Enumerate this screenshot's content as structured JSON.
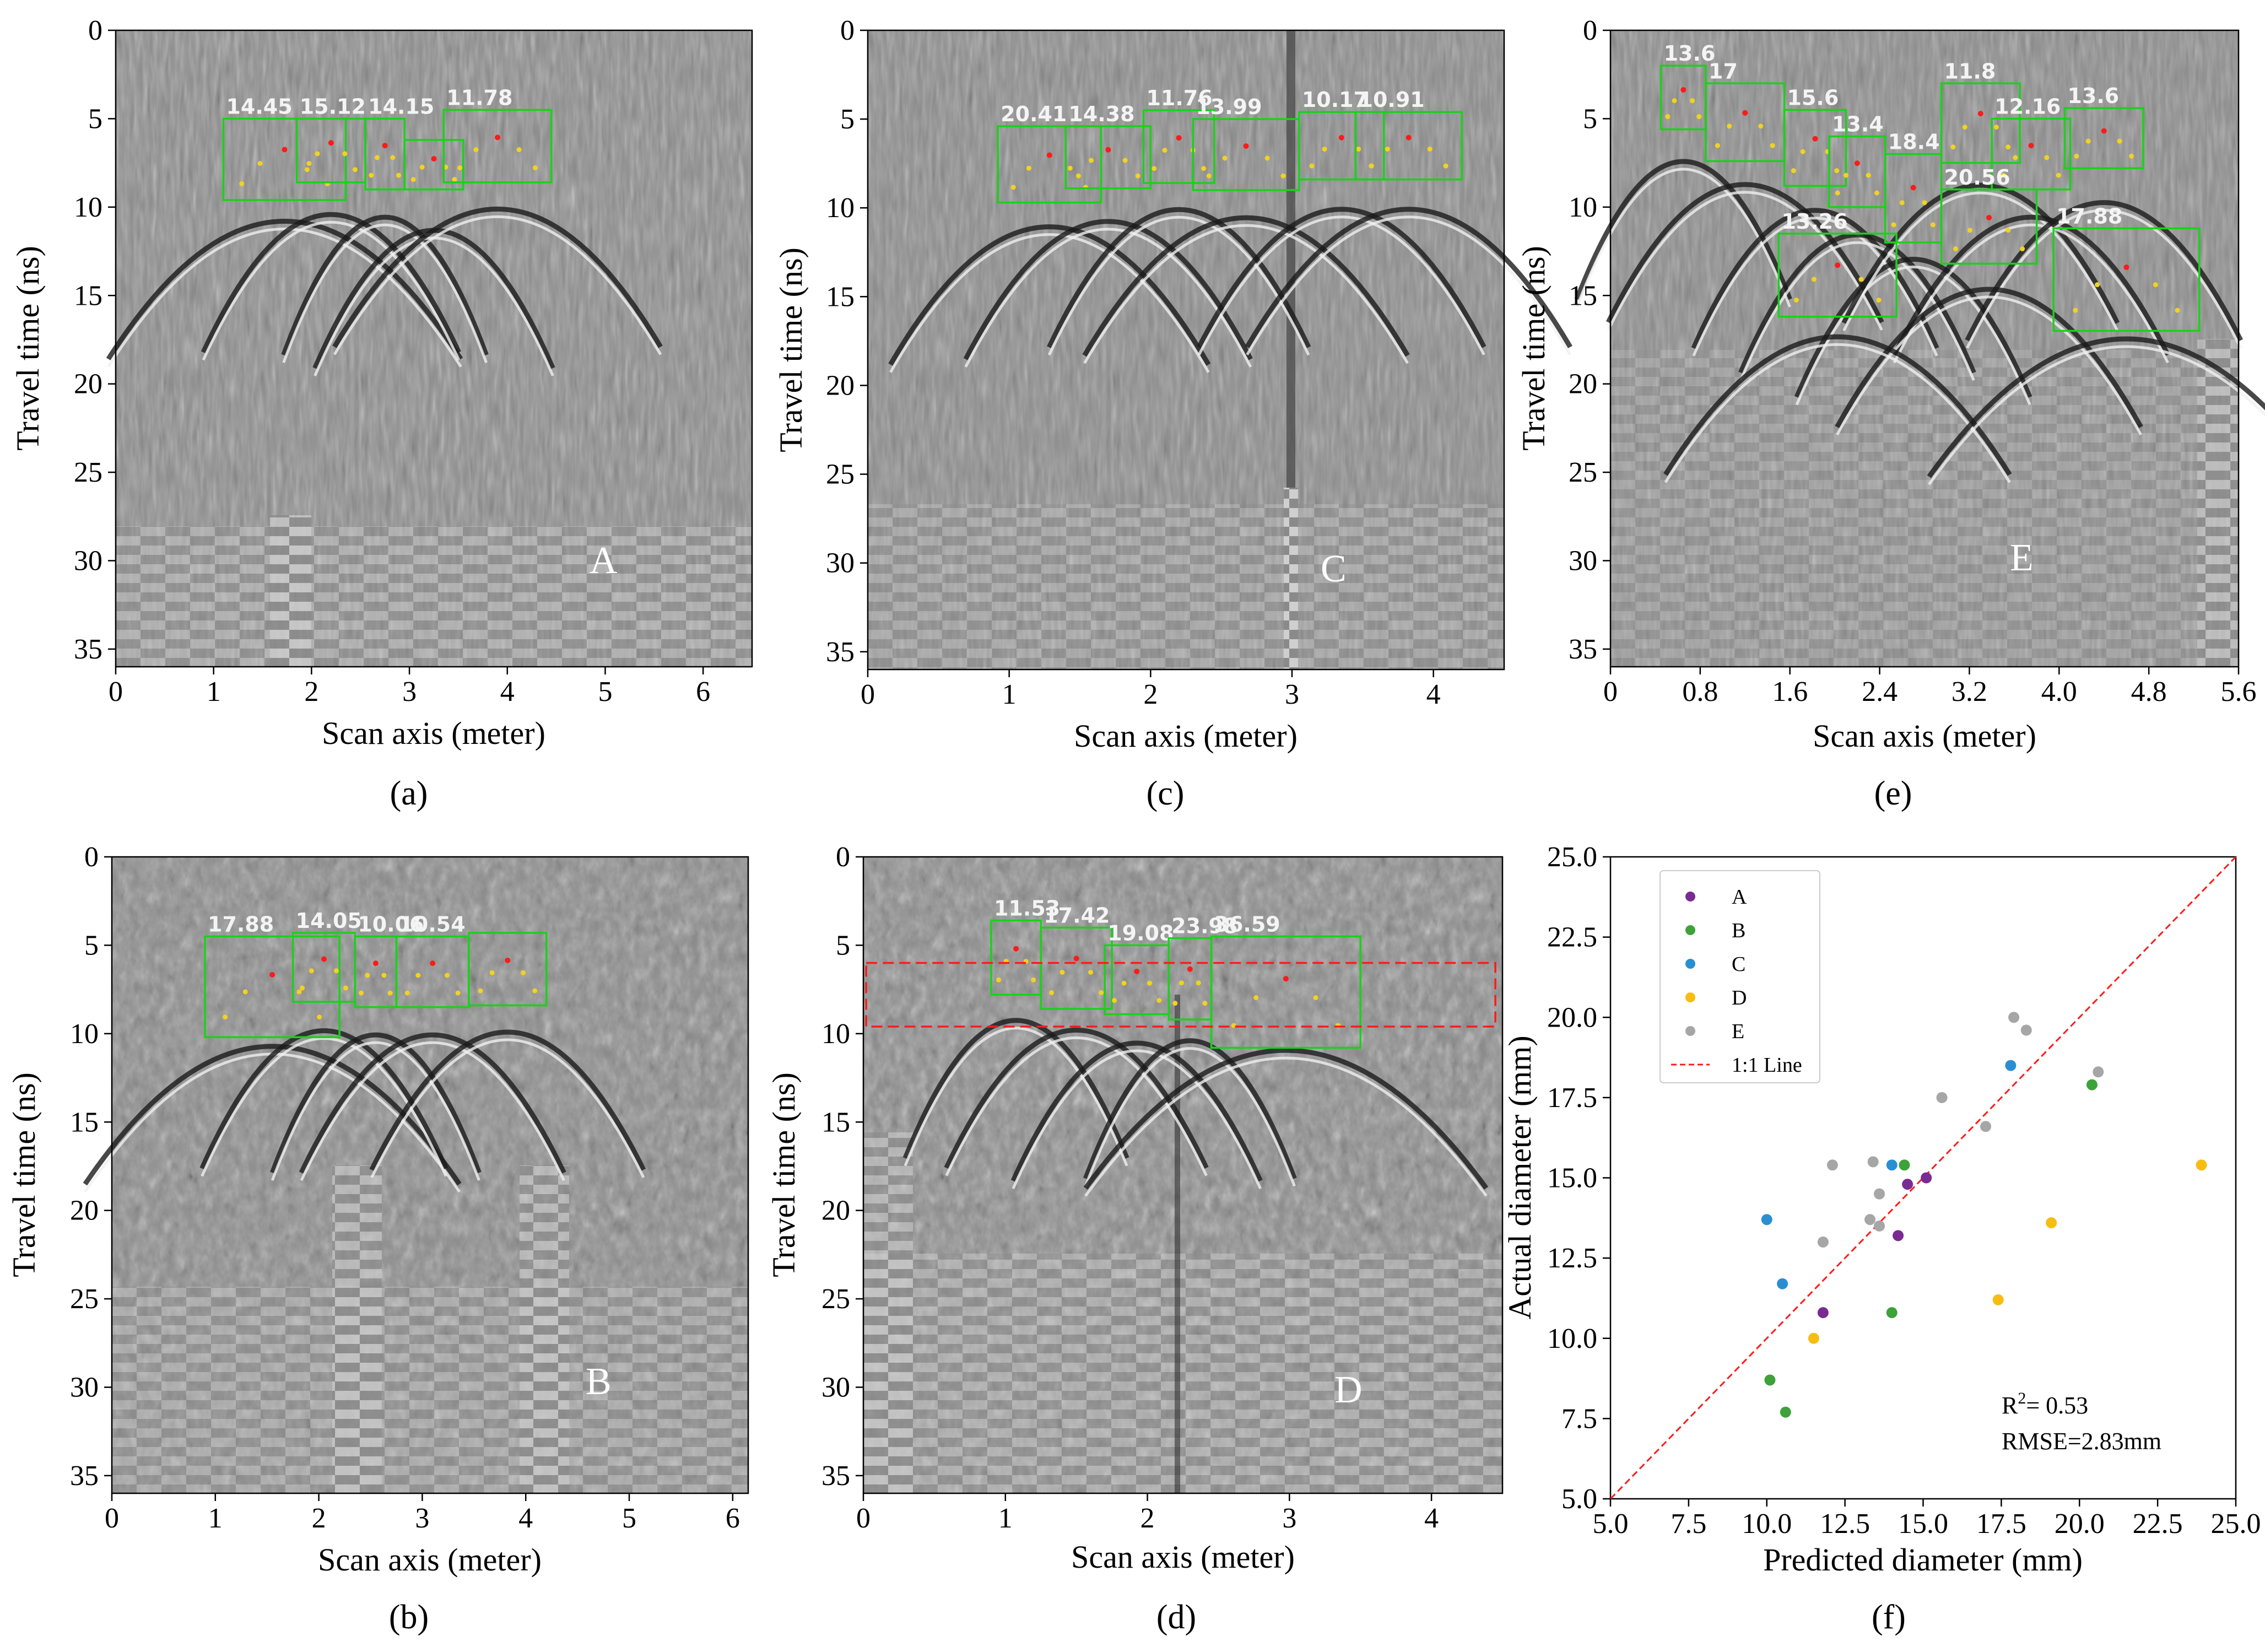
{
  "colors": {
    "box": "#19d219",
    "apex": "#ff1a1a",
    "edge": "#f2d21e",
    "dash": "#ff1a1a",
    "A": "#7a2b91",
    "B": "#3da23a",
    "C": "#2a8fd1",
    "D": "#f7bd12",
    "E": "#a6a6a6"
  },
  "chart_data": [
    {
      "id": "a",
      "type": "image-radargram",
      "caption": "(a)",
      "panel_label": "A",
      "xlabel": "Scan axis (meter)",
      "ylabel": "Travel time (ns)",
      "xlim": [
        0,
        6.5
      ],
      "ylim": [
        36,
        0
      ],
      "xticks": [
        0,
        1,
        2,
        3,
        4,
        5,
        6
      ],
      "xticklabels": [
        "0",
        "1",
        "2",
        "3",
        "4",
        "5",
        "6"
      ],
      "yticks": [
        0,
        5,
        10,
        15,
        20,
        25,
        30,
        35
      ],
      "yticklabels": [
        "0",
        "5",
        "10",
        "15",
        "20",
        "25",
        "30",
        "35"
      ],
      "detections": [
        {
          "label": "14.45",
          "x0": 1.1,
          "x1": 2.35,
          "t0": 5.0,
          "t1": 9.6
        },
        {
          "label": "15.12",
          "x0": 1.85,
          "x1": 2.55,
          "t0": 5.0,
          "t1": 8.6
        },
        {
          "label": "14.15",
          "x0": 2.55,
          "x1": 2.95,
          "t0": 5.0,
          "t1": 9.0
        },
        {
          "label": "",
          "x0": 2.95,
          "x1": 3.55,
          "t0": 6.2,
          "t1": 9.0
        },
        {
          "label": "11.78",
          "x0": 3.35,
          "x1": 4.45,
          "t0": 4.5,
          "t1": 8.6
        }
      ]
    },
    {
      "id": "b",
      "type": "image-radargram",
      "caption": "(b)",
      "panel_label": "B",
      "xlabel": "Scan axis (meter)",
      "ylabel": "Travel time (ns)",
      "xlim": [
        0,
        6.15
      ],
      "ylim": [
        36,
        0
      ],
      "xticks": [
        0,
        1,
        2,
        3,
        4,
        5,
        6
      ],
      "xticklabels": [
        "0",
        "1",
        "2",
        "3",
        "4",
        "5",
        "6"
      ],
      "yticks": [
        0,
        5,
        10,
        15,
        20,
        25,
        30,
        35
      ],
      "yticklabels": [
        "0",
        "5",
        "10",
        "15",
        "20",
        "25",
        "30",
        "35"
      ],
      "detections": [
        {
          "label": "17.88",
          "x0": 0.9,
          "x1": 2.2,
          "t0": 4.5,
          "t1": 10.2
        },
        {
          "label": "14.05",
          "x0": 1.75,
          "x1": 2.35,
          "t0": 4.3,
          "t1": 8.2
        },
        {
          "label": "10.06",
          "x0": 2.35,
          "x1": 2.75,
          "t0": 4.5,
          "t1": 8.5
        },
        {
          "label": "10.54",
          "x0": 2.75,
          "x1": 3.45,
          "t0": 4.5,
          "t1": 8.5
        },
        {
          "label": "",
          "x0": 3.45,
          "x1": 4.2,
          "t0": 4.3,
          "t1": 8.4
        }
      ]
    },
    {
      "id": "c",
      "type": "image-radargram",
      "caption": "(c)",
      "panel_label": "C",
      "xlabel": "Scan axis (meter)",
      "ylabel": "Travel time (ns)",
      "xlim": [
        0,
        4.5
      ],
      "ylim": [
        36,
        0
      ],
      "xticks": [
        0,
        1,
        2,
        3,
        4
      ],
      "xticklabels": [
        "0",
        "1",
        "2",
        "3",
        "4"
      ],
      "yticks": [
        0,
        5,
        10,
        15,
        20,
        25,
        30,
        35
      ],
      "yticklabels": [
        "0",
        "5",
        "10",
        "15",
        "20",
        "25",
        "30",
        "35"
      ],
      "detections": [
        {
          "label": "20.41",
          "x0": 0.92,
          "x1": 1.65,
          "t0": 5.4,
          "t1": 9.7
        },
        {
          "label": "14.38",
          "x0": 1.4,
          "x1": 2.0,
          "t0": 5.4,
          "t1": 8.9
        },
        {
          "label": "11.76",
          "x0": 1.95,
          "x1": 2.45,
          "t0": 4.5,
          "t1": 8.6
        },
        {
          "label": "13.99",
          "x0": 2.3,
          "x1": 3.05,
          "t0": 5.0,
          "t1": 9.0
        },
        {
          "label": "10.17",
          "x0": 3.05,
          "x1": 3.65,
          "t0": 4.6,
          "t1": 8.4
        },
        {
          "label": "10.91",
          "x0": 3.45,
          "x1": 4.2,
          "t0": 4.6,
          "t1": 8.4
        }
      ]
    },
    {
      "id": "d",
      "type": "image-radargram",
      "caption": "(d)",
      "panel_label": "D",
      "xlabel": "Scan axis (meter)",
      "ylabel": "Travel time (ns)",
      "xlim": [
        0,
        4.5
      ],
      "ylim": [
        36,
        0
      ],
      "xticks": [
        0,
        1,
        2,
        3,
        4
      ],
      "xticklabels": [
        "0",
        "1",
        "2",
        "3",
        "4"
      ],
      "yticks": [
        0,
        5,
        10,
        15,
        20,
        25,
        30,
        35
      ],
      "yticklabels": [
        "0",
        "5",
        "10",
        "15",
        "20",
        "25",
        "30",
        "35"
      ],
      "detections": [
        {
          "label": "11.53",
          "x0": 0.9,
          "x1": 1.25,
          "t0": 3.6,
          "t1": 7.8
        },
        {
          "label": "17.42",
          "x0": 1.25,
          "x1": 1.75,
          "t0": 4.0,
          "t1": 8.6
        },
        {
          "label": "19.08",
          "x0": 1.7,
          "x1": 2.15,
          "t0": 5.0,
          "t1": 8.9
        },
        {
          "label": "23.98",
          "x0": 2.15,
          "x1": 2.45,
          "t0": 4.6,
          "t1": 9.2
        },
        {
          "label": "36.59",
          "x0": 2.45,
          "x1": 3.5,
          "t0": 4.5,
          "t1": 10.8
        }
      ],
      "dashed_band": {
        "x0": 0.02,
        "x1": 4.45,
        "t0": 6.0,
        "t1": 9.6
      }
    },
    {
      "id": "e",
      "type": "image-radargram",
      "caption": "(e)",
      "panel_label": "E",
      "xlabel": "Scan axis (meter)",
      "ylabel": "Travel time (ns)",
      "xlim": [
        0,
        5.6
      ],
      "ylim": [
        36,
        0
      ],
      "xticks": [
        0,
        0.8,
        1.6,
        2.4,
        3.2,
        4.0,
        4.8,
        5.6
      ],
      "xticklabels": [
        "0",
        "0.8",
        "1.6",
        "2.4",
        "3.2",
        "4.0",
        "4.8",
        "5.6"
      ],
      "yticks": [
        0,
        5,
        10,
        15,
        20,
        25,
        30,
        35
      ],
      "yticklabels": [
        "0",
        "5",
        "10",
        "15",
        "20",
        "25",
        "30",
        "35"
      ],
      "detections": [
        {
          "label": "13.6",
          "x0": 0.45,
          "x1": 0.85,
          "t0": 2.0,
          "t1": 5.6
        },
        {
          "label": "17",
          "x0": 0.85,
          "x1": 1.55,
          "t0": 3.0,
          "t1": 7.4
        },
        {
          "label": "15.6",
          "x0": 1.55,
          "x1": 2.1,
          "t0": 4.5,
          "t1": 8.8
        },
        {
          "label": "13.4",
          "x0": 1.95,
          "x1": 2.45,
          "t0": 6.0,
          "t1": 10.0
        },
        {
          "label": "18.4",
          "x0": 2.45,
          "x1": 2.95,
          "t0": 7.0,
          "t1": 12.0
        },
        {
          "label": "11.8",
          "x0": 2.95,
          "x1": 3.65,
          "t0": 3.0,
          "t1": 7.5
        },
        {
          "label": "12.16",
          "x0": 3.4,
          "x1": 4.1,
          "t0": 5.0,
          "t1": 9.0
        },
        {
          "label": "13.6",
          "x0": 4.05,
          "x1": 4.75,
          "t0": 4.4,
          "t1": 7.8
        },
        {
          "label": "20.56",
          "x0": 2.95,
          "x1": 3.8,
          "t0": 9.0,
          "t1": 13.2
        },
        {
          "label": "13.26",
          "x0": 1.5,
          "x1": 2.55,
          "t0": 11.5,
          "t1": 16.2
        },
        {
          "label": "17.88",
          "x0": 3.95,
          "x1": 5.25,
          "t0": 11.2,
          "t1": 17.0
        }
      ]
    },
    {
      "id": "f",
      "type": "scatter",
      "caption": "(f)",
      "xlabel": "Predicted diameter (mm)",
      "ylabel": "Actual diameter (mm)",
      "xlim": [
        5.0,
        25.0
      ],
      "ylim": [
        5.0,
        25.0
      ],
      "xticks": [
        5.0,
        7.5,
        10.0,
        12.5,
        15.0,
        17.5,
        20.0,
        22.5,
        25.0
      ],
      "xticklabels": [
        "5.0",
        "7.5",
        "10.0",
        "12.5",
        "15.0",
        "17.5",
        "20.0",
        "22.5",
        "25.0"
      ],
      "yticks": [
        5.0,
        7.5,
        10.0,
        12.5,
        15.0,
        17.5,
        20.0,
        22.5,
        25.0
      ],
      "yticklabels": [
        "5.0",
        "7.5",
        "10.0",
        "12.5",
        "15.0",
        "17.5",
        "20.0",
        "22.5",
        "25.0"
      ],
      "series": [
        {
          "name": "A",
          "points": [
            [
              11.8,
              10.8
            ],
            [
              14.2,
              13.2
            ],
            [
              14.5,
              14.8
            ],
            [
              15.1,
              15.0
            ]
          ]
        },
        {
          "name": "B",
          "points": [
            [
              10.1,
              8.7
            ],
            [
              10.6,
              7.7
            ],
            [
              14.0,
              10.8
            ],
            [
              14.4,
              15.4
            ],
            [
              20.4,
              17.9
            ]
          ]
        },
        {
          "name": "C",
          "points": [
            [
              10.0,
              13.7
            ],
            [
              10.5,
              11.7
            ],
            [
              14.0,
              15.4
            ],
            [
              17.8,
              18.5
            ]
          ]
        },
        {
          "name": "D",
          "points": [
            [
              11.5,
              10.0
            ],
            [
              17.4,
              11.2
            ],
            [
              19.1,
              13.6
            ],
            [
              23.9,
              15.4
            ]
          ]
        },
        {
          "name": "E",
          "points": [
            [
              11.8,
              13.0
            ],
            [
              12.1,
              15.4
            ],
            [
              13.3,
              13.7
            ],
            [
              13.4,
              15.5
            ],
            [
              13.6,
              13.5
            ],
            [
              13.6,
              14.5
            ],
            [
              15.6,
              17.5
            ],
            [
              17.0,
              16.6
            ],
            [
              17.9,
              20.0
            ],
            [
              18.3,
              19.6
            ],
            [
              20.6,
              18.3
            ]
          ]
        }
      ],
      "reference_line": {
        "name": "1:1 Line",
        "from": [
          5.0,
          5.0
        ],
        "to": [
          25.0,
          25.0
        ]
      },
      "annotations": {
        "r2_label": "R",
        "r2_sup": "2",
        "r2_value": "= 0.53",
        "rmse": "RMSE=2.83mm"
      },
      "legend": "top-left"
    }
  ]
}
